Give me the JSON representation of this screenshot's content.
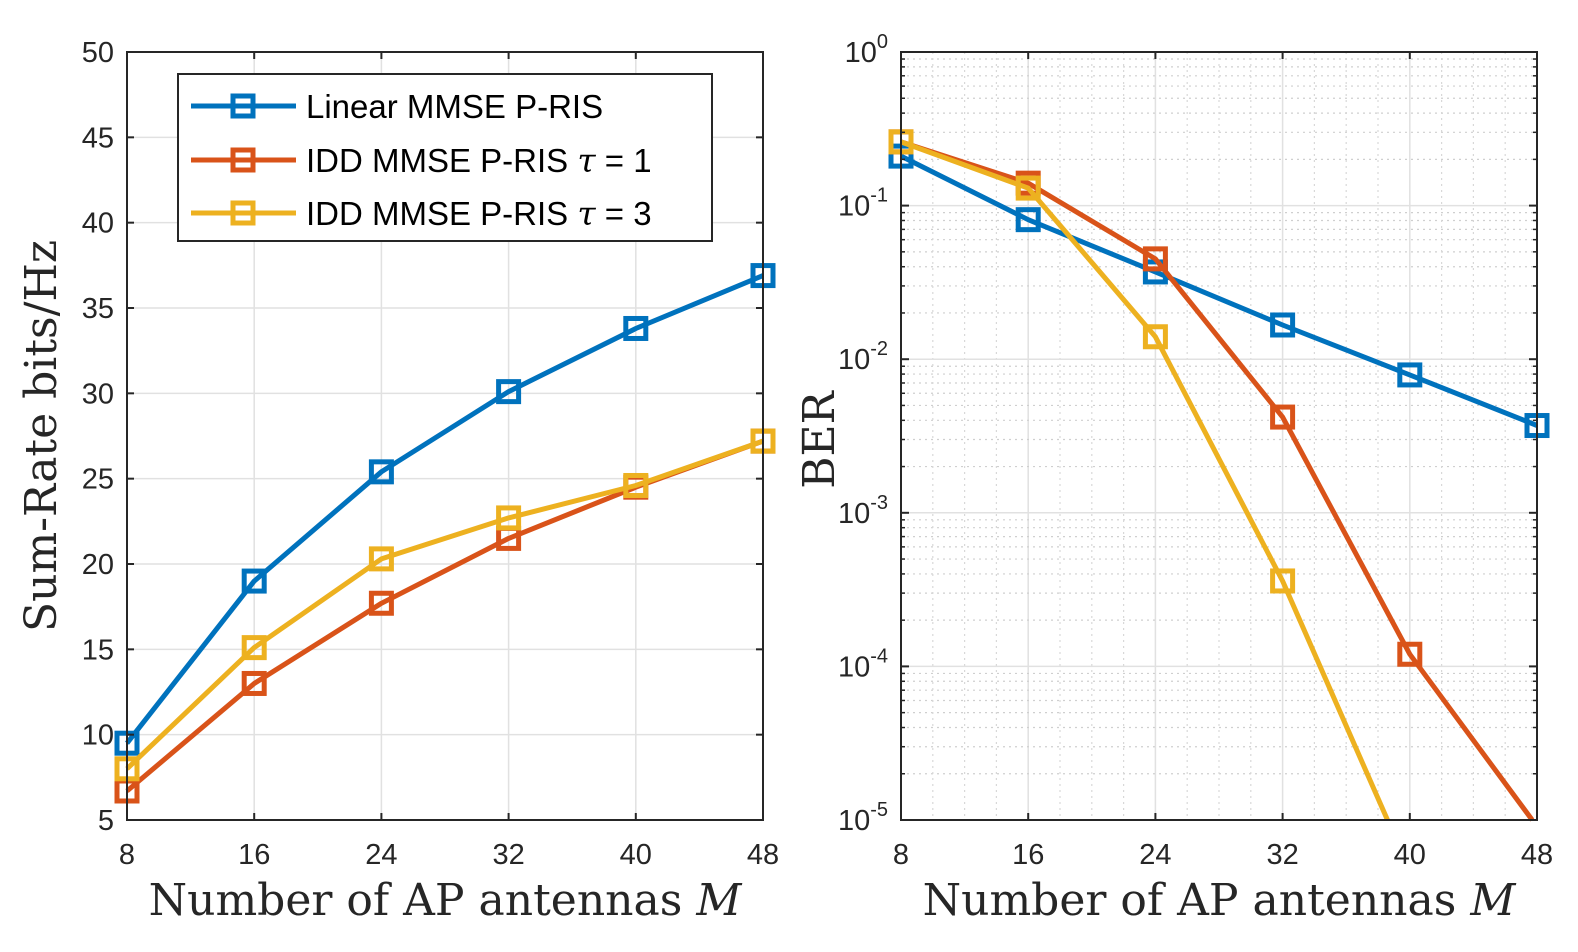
{
  "chart_data": [
    {
      "type": "line",
      "title": "",
      "xlabel": "Number of AP antennas",
      "xlabel_var": "M",
      "ylabel": "Sum-Rate bits/Hz",
      "x": [
        8,
        16,
        24,
        32,
        40,
        48
      ],
      "xlim": [
        8,
        48
      ],
      "ylim": [
        5,
        50
      ],
      "xticks": [
        "8",
        "16",
        "24",
        "32",
        "40",
        "48"
      ],
      "yticks": [
        "5",
        "10",
        "15",
        "20",
        "25",
        "30",
        "35",
        "40",
        "45",
        "50"
      ],
      "yscale": "linear",
      "grid": true,
      "legend_position": "top-left",
      "series": [
        {
          "name": "Linear MMSE P-RIS",
          "color": "#0072BD",
          "marker": "square",
          "values": [
            9.5,
            19.0,
            25.4,
            30.1,
            33.8,
            36.9
          ]
        },
        {
          "name": "IDD MMSE P-RIS τ = 1",
          "color": "#D95319",
          "marker": "square",
          "values": [
            6.7,
            13.0,
            17.7,
            21.5,
            24.5,
            27.2
          ]
        },
        {
          "name": "IDD MMSE P-RIS τ = 3",
          "color": "#EDB120",
          "marker": "square",
          "values": [
            8.0,
            15.1,
            20.3,
            22.7,
            24.6,
            27.2
          ]
        }
      ]
    },
    {
      "type": "line",
      "title": "",
      "xlabel": "Number of AP antennas",
      "xlabel_var": "M",
      "ylabel": "BER",
      "x": [
        8,
        16,
        24,
        32,
        40,
        48
      ],
      "xlim": [
        8,
        48
      ],
      "ylim": [
        1e-05,
        1
      ],
      "yscale": "log",
      "xticks": [
        "8",
        "16",
        "24",
        "32",
        "40",
        "48"
      ],
      "yticks": [
        {
          "base": "10",
          "exp": "0"
        },
        {
          "base": "10",
          "exp": "-1"
        },
        {
          "base": "10",
          "exp": "-2"
        },
        {
          "base": "10",
          "exp": "-3"
        },
        {
          "base": "10",
          "exp": "-4"
        },
        {
          "base": "10",
          "exp": "-5"
        }
      ],
      "grid": true,
      "minor_grid": true,
      "series": [
        {
          "name": "Linear MMSE P-RIS",
          "color": "#0072BD",
          "marker": "square",
          "points": [
            [
              8,
              0.21
            ],
            [
              16,
              0.081
            ],
            [
              24,
              0.037
            ],
            [
              32,
              0.0167
            ],
            [
              40,
              0.0079
            ],
            [
              48,
              0.0037
            ]
          ],
          "marked": [
            true,
            true,
            true,
            true,
            true,
            true
          ]
        },
        {
          "name": "IDD MMSE P-RIS τ = 1",
          "color": "#D95319",
          "marker": "square",
          "points": [
            [
              8,
              0.26
            ],
            [
              16,
              0.14
            ],
            [
              24,
              0.045
            ],
            [
              32,
              0.0042
            ],
            [
              40,
              0.00012
            ],
            [
              47.7,
              1e-05
            ]
          ],
          "marked": [
            true,
            true,
            true,
            true,
            true,
            false
          ]
        },
        {
          "name": "IDD MMSE P-RIS τ = 3",
          "color": "#EDB120",
          "marker": "square",
          "points": [
            [
              8,
              0.26
            ],
            [
              16,
              0.13
            ],
            [
              24,
              0.014
            ],
            [
              32,
              0.00036
            ],
            [
              38.6,
              1e-05
            ]
          ],
          "marked": [
            true,
            true,
            true,
            true,
            false
          ]
        }
      ]
    }
  ]
}
